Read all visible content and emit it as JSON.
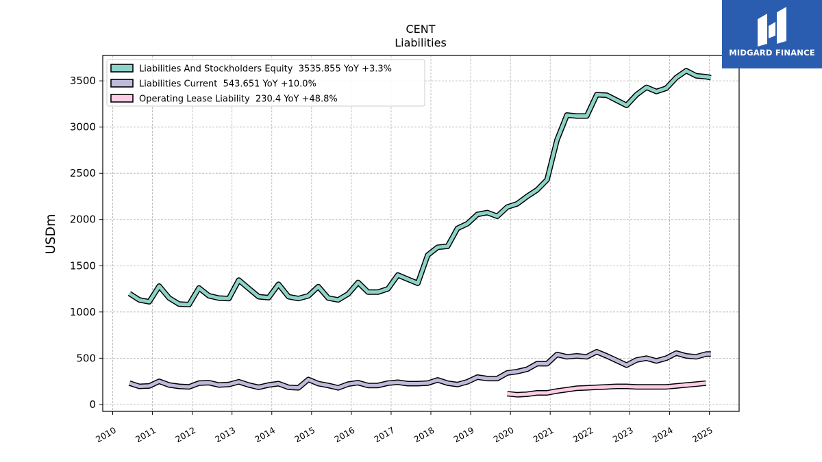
{
  "logo": {
    "text": "MIDGARD FINANCE",
    "icon": "midgard-finance-logo-icon",
    "bg": "#2a5db0"
  },
  "chart_data": {
    "type": "line",
    "title": "CENT",
    "subtitle": "Liabilities",
    "xlabel": "",
    "ylabel": "USDm",
    "xlim": [
      2009.75,
      2025.75
    ],
    "ylim": [
      -75,
      3775
    ],
    "x_ticks": [
      "2010",
      "2011",
      "2012",
      "2013",
      "2014",
      "2015",
      "2016",
      "2017",
      "2018",
      "2019",
      "2020",
      "2021",
      "2022",
      "2023",
      "2024",
      "2025"
    ],
    "y_ticks": [
      0,
      500,
      1000,
      1500,
      2000,
      2500,
      3000,
      3500
    ],
    "grid": true,
    "legend_position": "top-left",
    "series": [
      {
        "name": "Liabilities And Stockholders Equity  3535.855 YoY +3.3%",
        "color": "#8dd3c7",
        "x": [
          2010.42,
          2010.67,
          2010.92,
          2011.17,
          2011.42,
          2011.67,
          2011.92,
          2012.17,
          2012.42,
          2012.67,
          2012.92,
          2013.17,
          2013.42,
          2013.67,
          2013.92,
          2014.17,
          2014.42,
          2014.67,
          2014.92,
          2015.17,
          2015.42,
          2015.67,
          2015.92,
          2016.17,
          2016.42,
          2016.67,
          2016.92,
          2017.17,
          2017.42,
          2017.67,
          2017.92,
          2018.17,
          2018.42,
          2018.67,
          2018.92,
          2019.17,
          2019.42,
          2019.67,
          2019.92,
          2020.17,
          2020.42,
          2020.67,
          2020.92,
          2021.17,
          2021.42,
          2021.67,
          2021.92,
          2022.17,
          2022.42,
          2022.67,
          2022.92,
          2023.17,
          2023.42,
          2023.67,
          2023.92,
          2024.17,
          2024.42,
          2024.67,
          2024.92,
          2025.04
        ],
        "values": [
          1200,
          1130,
          1110,
          1280,
          1150,
          1085,
          1080,
          1260,
          1175,
          1150,
          1145,
          1345,
          1255,
          1165,
          1155,
          1300,
          1165,
          1145,
          1175,
          1275,
          1150,
          1130,
          1195,
          1320,
          1215,
          1215,
          1250,
          1400,
          1355,
          1310,
          1615,
          1700,
          1710,
          1905,
          1955,
          2055,
          2075,
          2035,
          2135,
          2170,
          2250,
          2320,
          2430,
          2860,
          3130,
          3120,
          3120,
          3350,
          3345,
          3290,
          3235,
          3350,
          3430,
          3385,
          3420,
          3535,
          3610,
          3555,
          3545,
          3535
        ]
      },
      {
        "name": "Liabilities Current  543.651 YoY +10.0%",
        "color": "#bebada",
        "x": [
          2010.42,
          2010.67,
          2010.92,
          2011.17,
          2011.42,
          2011.67,
          2011.92,
          2012.17,
          2012.42,
          2012.67,
          2012.92,
          2013.17,
          2013.42,
          2013.67,
          2013.92,
          2014.17,
          2014.42,
          2014.67,
          2014.92,
          2015.17,
          2015.42,
          2015.67,
          2015.92,
          2016.17,
          2016.42,
          2016.67,
          2016.92,
          2017.17,
          2017.42,
          2017.67,
          2017.92,
          2018.17,
          2018.42,
          2018.67,
          2018.92,
          2019.17,
          2019.42,
          2019.67,
          2019.92,
          2020.17,
          2020.42,
          2020.67,
          2020.92,
          2021.17,
          2021.42,
          2021.67,
          2021.92,
          2022.17,
          2022.42,
          2022.67,
          2022.92,
          2023.17,
          2023.42,
          2023.67,
          2023.92,
          2024.17,
          2024.42,
          2024.67,
          2024.92,
          2025.04
        ],
        "values": [
          230,
          195,
          200,
          250,
          210,
          195,
          190,
          230,
          235,
          210,
          215,
          245,
          210,
          185,
          210,
          225,
          185,
          180,
          270,
          225,
          205,
          180,
          220,
          235,
          205,
          205,
          230,
          240,
          225,
          225,
          230,
          265,
          230,
          215,
          245,
          295,
          280,
          280,
          340,
          355,
          380,
          440,
          440,
          540,
          515,
          525,
          515,
          570,
          525,
          475,
          425,
          480,
          500,
          470,
          500,
          555,
          525,
          515,
          545,
          545
        ]
      },
      {
        "name": "Operating Lease Liability  230.4 YoY +48.8%",
        "color": "#fccde5",
        "x": [
          2019.92,
          2020.17,
          2020.42,
          2020.67,
          2020.92,
          2021.17,
          2021.42,
          2021.67,
          2021.92,
          2022.17,
          2022.42,
          2022.67,
          2022.92,
          2023.17,
          2023.42,
          2023.67,
          2023.92,
          2024.17,
          2024.42,
          2024.67,
          2024.92
        ],
        "values": [
          115,
          105,
          110,
          125,
          125,
          145,
          160,
          175,
          180,
          185,
          190,
          195,
          195,
          190,
          190,
          190,
          190,
          200,
          210,
          220,
          230
        ]
      }
    ]
  }
}
